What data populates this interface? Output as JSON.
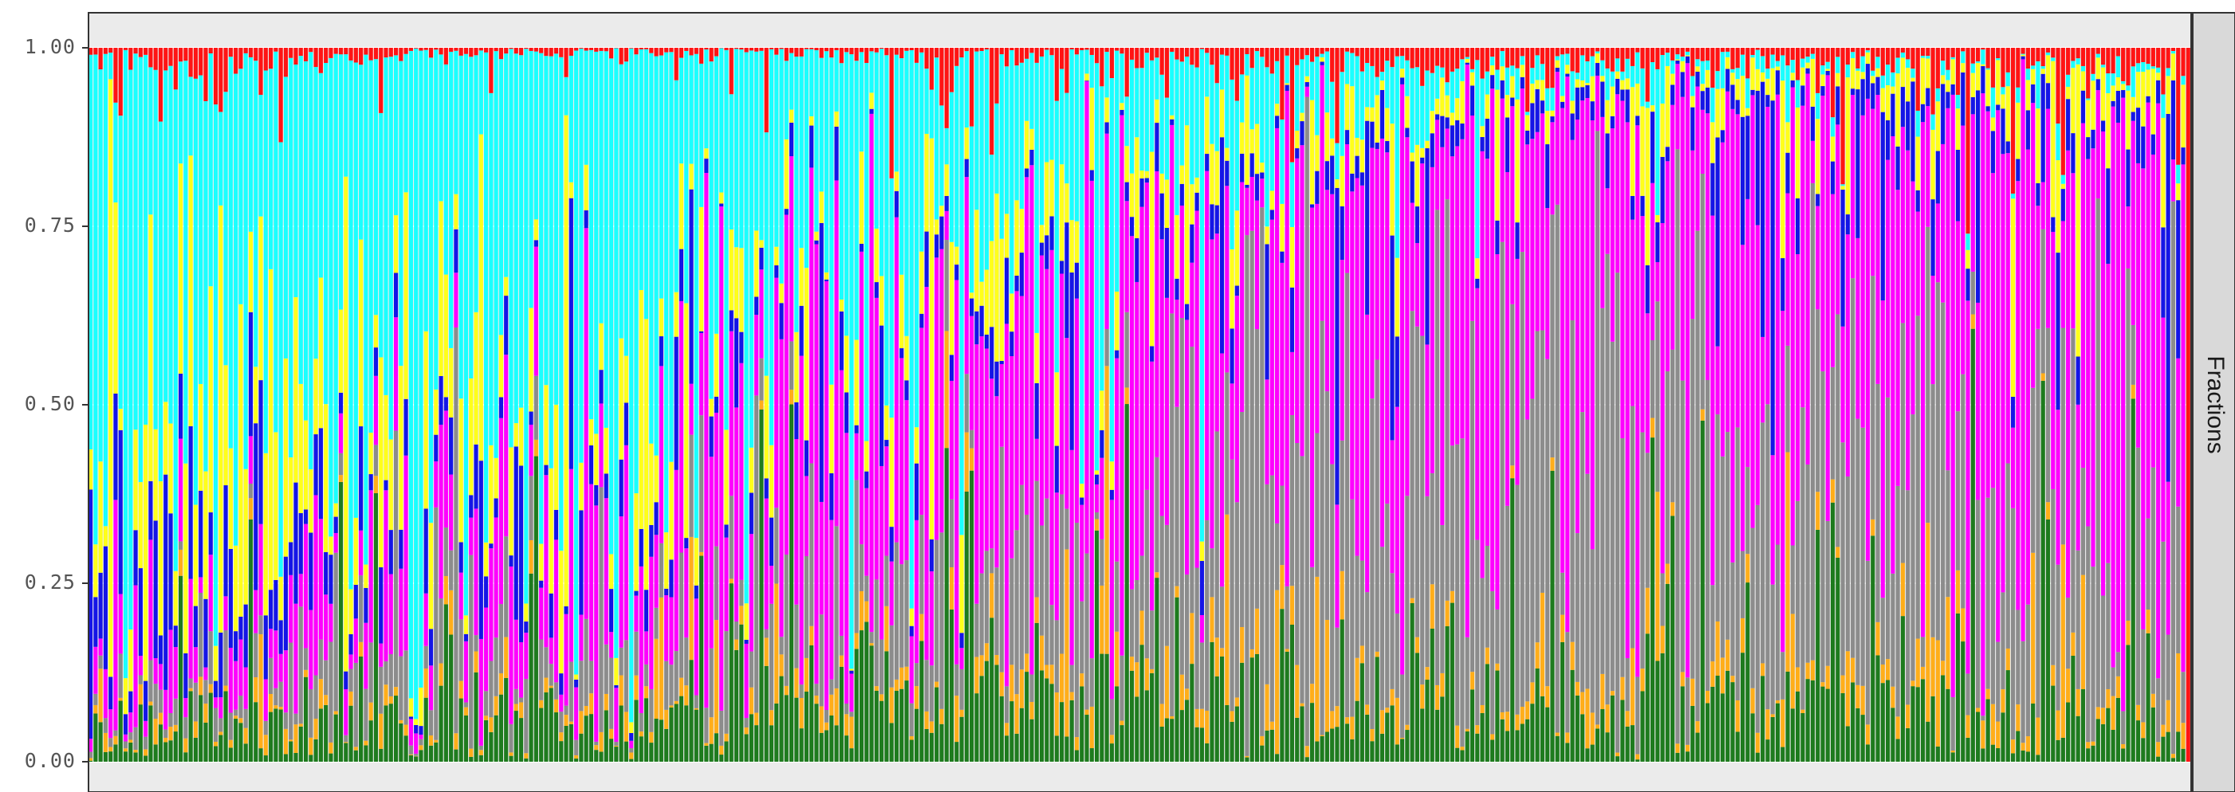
{
  "chart_data": {
    "type": "bar",
    "stacked": true,
    "normalized": true,
    "title": "",
    "xlabel": "",
    "ylabel": "",
    "ylim": [
      0,
      1
    ],
    "grid": true,
    "legend": "none",
    "facet_strip": {
      "label": "Fractions"
    },
    "y_ticks": [
      {
        "value": 0.0,
        "label": "0.00"
      },
      {
        "value": 0.25,
        "label": "0.25"
      },
      {
        "value": 0.5,
        "label": "0.50"
      },
      {
        "value": 0.75,
        "label": "0.75"
      },
      {
        "value": 1.0,
        "label": "1.00"
      }
    ],
    "n_bars": 420,
    "series_order": [
      "green",
      "orange",
      "gray",
      "magenta",
      "blue",
      "yellow",
      "cyan",
      "red"
    ],
    "series_colors": {
      "green": "#1e7b1e",
      "orange": "#ffae1a",
      "gray": "#8c8c8c",
      "magenta": "#ff00ff",
      "blue": "#1515e6",
      "yellow": "#ffff1a",
      "cyan": "#1affff",
      "red": "#ff1414"
    },
    "composition_profiles": [
      {
        "position": 0.0,
        "values": [
          0.05,
          0.02,
          0.03,
          0.05,
          0.12,
          0.18,
          0.5,
          0.05
        ]
      },
      {
        "position": 0.15,
        "values": [
          0.06,
          0.02,
          0.05,
          0.12,
          0.05,
          0.14,
          0.55,
          0.01
        ]
      },
      {
        "position": 0.35,
        "values": [
          0.1,
          0.03,
          0.1,
          0.28,
          0.04,
          0.08,
          0.36,
          0.01
        ]
      },
      {
        "position": 0.5,
        "values": [
          0.12,
          0.04,
          0.2,
          0.38,
          0.04,
          0.06,
          0.14,
          0.02
        ]
      },
      {
        "position": 0.65,
        "values": [
          0.1,
          0.03,
          0.38,
          0.35,
          0.04,
          0.03,
          0.04,
          0.03
        ]
      },
      {
        "position": 0.8,
        "values": [
          0.1,
          0.03,
          0.3,
          0.46,
          0.04,
          0.03,
          0.02,
          0.02
        ]
      },
      {
        "position": 1.0,
        "values": [
          0.08,
          0.03,
          0.25,
          0.48,
          0.05,
          0.06,
          0.01,
          0.04
        ]
      }
    ],
    "final_bar_values": [
      0.0,
      0.0,
      0.0,
      0.0,
      0.0,
      0.0,
      0.0,
      1.0
    ]
  }
}
